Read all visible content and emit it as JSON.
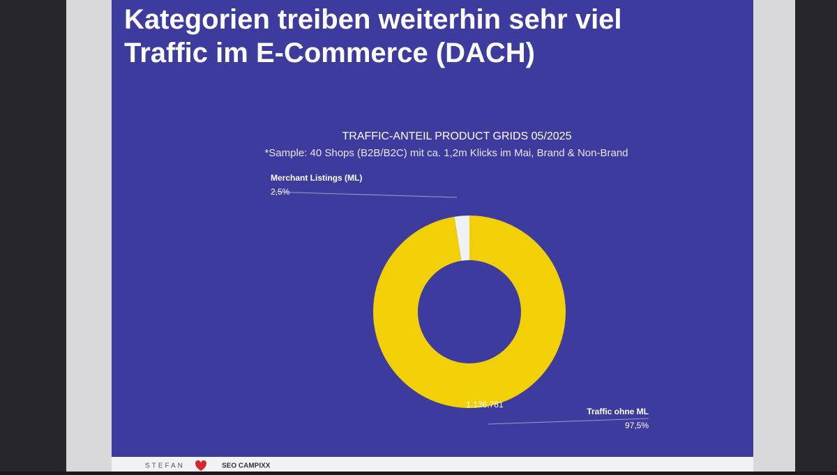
{
  "chart_data": {
    "type": "donut",
    "slide_title": "Kategorien treiben weiterhin sehr viel Traffic im E-Commerce (DACH)",
    "title": "TRAFFIC-ANTEIL PRODUCT GRIDS 05/2025",
    "subtitle": "*Sample: 40 Shops (B2B/B2C) mit ca. 1,2m Klicks im Mai, Brand & Non-Brand",
    "categories": [
      "Merchant Listings (ML)",
      "Traffic ohne ML"
    ],
    "values": [
      2.5,
      97.5
    ],
    "value_labels": [
      "2,5%",
      "97,5%"
    ],
    "colors": [
      "#eef2f2",
      "#f2cf06"
    ],
    "annotation": "1.136.781"
  },
  "footer": [
    "STEFAN",
    "SEO CAMPIXX"
  ]
}
